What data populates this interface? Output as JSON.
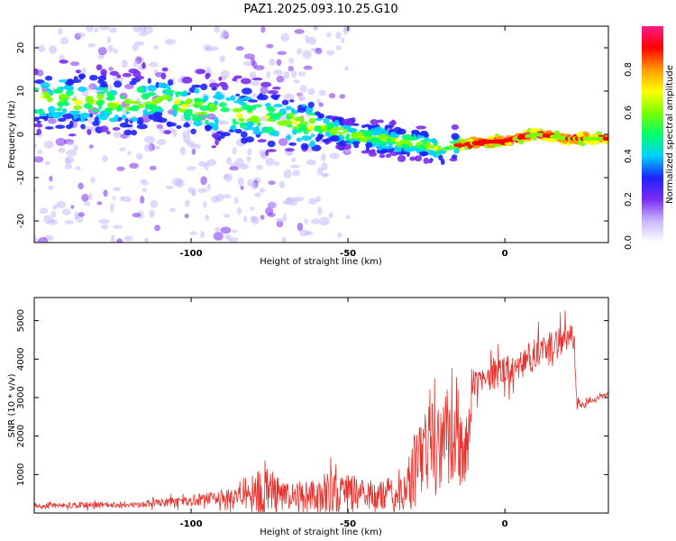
{
  "title": "PAZ1.2025.093.10.25.G10",
  "colors": {
    "snr_line": "#e8312c",
    "colormap": [
      "#ffffff",
      "#c9b8ff",
      "#7a2cf0",
      "#1e22ff",
      "#00d2ff",
      "#00ff6a",
      "#7dff00",
      "#ffff00",
      "#ff9a00",
      "#ff0000",
      "#ff1a8c"
    ]
  },
  "chart_data": [
    {
      "type": "heatmap",
      "description_of_values": "spectrogram ridge",
      "xlabel": "Height of straight line (km)",
      "ylabel": "Frequency (Hz)",
      "xlim": [
        -150,
        33
      ],
      "ylim": [
        -25,
        25
      ],
      "xticks": [
        -100,
        -50,
        0
      ],
      "yticks": [
        -20,
        -10,
        0,
        10,
        20
      ],
      "ridge": {
        "x": [
          -140,
          -120,
          -110,
          -100,
          -90,
          -80,
          -70,
          -60,
          -50,
          -40,
          -30,
          -20,
          -10,
          0,
          10,
          20,
          33
        ],
        "y": [
          8,
          7,
          8,
          6,
          5,
          4,
          3,
          2,
          0,
          -1,
          -2,
          -3,
          -2,
          -1.5,
          0,
          -1,
          -1
        ]
      },
      "colorbar": {
        "label": "Normalized spectral amplitude",
        "range": [
          0,
          1
        ],
        "ticks": [
          "0.0",
          "0.2",
          "0.4",
          "0.6",
          "0.8"
        ]
      }
    },
    {
      "type": "line",
      "xlabel": "Height of straight line (km)",
      "ylabel": "SNR (10 * v/v)",
      "xlim": [
        -150,
        33
      ],
      "ylim": [
        0,
        5600
      ],
      "xticks": [
        -100,
        -50,
        0
      ],
      "yticks": [
        1000,
        2000,
        3000,
        4000,
        5000
      ],
      "series": [
        {
          "envelope": {
            "x": [
              -150,
              -140,
              -120,
              -110,
              -100,
              -90,
              -80,
              -78,
              -70,
              -60,
              -55,
              -50,
              -45,
              -40,
              -35,
              -30,
              -27,
              -25,
              -20,
              -15,
              -12,
              -10,
              -5,
              0,
              5,
              10,
              15,
              20,
              22,
              23,
              25,
              30,
              33
            ],
            "base": [
              180,
              200,
              220,
              260,
              320,
              400,
              450,
              500,
              450,
              500,
              550,
              600,
              500,
              450,
              500,
              900,
              1500,
              1800,
              1700,
              1600,
              1400,
              3300,
              3500,
              3700,
              3900,
              4100,
              4300,
              4500,
              4600,
              2800,
              2800,
              3000,
              3100
            ],
            "amp": [
              60,
              100,
              120,
              150,
              200,
              250,
              450,
              1200,
              500,
              600,
              800,
              700,
              600,
              500,
              700,
              1400,
              1500,
              1700,
              1600,
              1500,
              1400,
              500,
              550,
              600,
              600,
              650,
              650,
              600,
              500,
              200,
              150,
              100,
              80
            ]
          }
        }
      ]
    }
  ]
}
